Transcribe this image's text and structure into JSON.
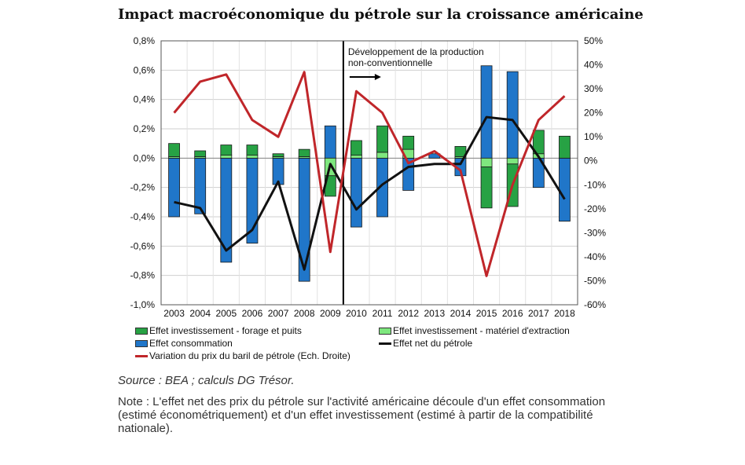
{
  "title": "Impact macroéconomique du pétrole sur la croissance américaine",
  "colors": {
    "forage": "#27a244",
    "materiel": "#7ee77e",
    "consommation": "#2076c9",
    "net": "#111111",
    "prix": "#c0262a"
  },
  "chart_data": {
    "type": "bar",
    "categories": [
      "2003",
      "2004",
      "2005",
      "2006",
      "2007",
      "2008",
      "2009",
      "2010",
      "2011",
      "2012",
      "2013",
      "2014",
      "2015",
      "2016",
      "2017",
      "2018"
    ],
    "series": [
      {
        "name": "Effet investissement - forage et puits",
        "type": "bar",
        "axis": "left",
        "values": [
          0.09,
          0.04,
          0.07,
          0.07,
          0.02,
          0.05,
          -0.14,
          0.1,
          0.18,
          0.09,
          0.0,
          0.07,
          -0.28,
          -0.29,
          0.16,
          0.15
        ]
      },
      {
        "name": "Effet investissement - matériel d'extraction",
        "type": "bar",
        "axis": "left",
        "values": [
          0.01,
          0.01,
          0.02,
          0.02,
          0.01,
          0.01,
          -0.12,
          0.02,
          0.04,
          0.06,
          0.0,
          0.01,
          -0.06,
          -0.04,
          0.03,
          0.0
        ]
      },
      {
        "name": "Effet consommation",
        "type": "bar",
        "axis": "left",
        "values": [
          -0.4,
          -0.38,
          -0.71,
          -0.58,
          -0.18,
          -0.84,
          0.22,
          -0.47,
          -0.4,
          -0.22,
          0.03,
          -0.12,
          0.63,
          0.59,
          -0.2,
          -0.43
        ]
      },
      {
        "name": "Effet net du pétrole",
        "type": "line",
        "axis": "left",
        "values": [
          -0.3,
          -0.34,
          -0.63,
          -0.49,
          -0.16,
          -0.76,
          -0.04,
          -0.35,
          -0.18,
          -0.06,
          -0.04,
          -0.04,
          0.28,
          0.26,
          0.01,
          -0.28
        ]
      },
      {
        "name": "Variation du prix du baril de pétrole (Ech. Droite)",
        "type": "line",
        "axis": "right",
        "values": [
          20,
          33,
          36,
          17,
          10,
          37,
          -38,
          29,
          20,
          -1,
          4,
          -4,
          -48,
          -10,
          17,
          27
        ]
      }
    ],
    "y_left": {
      "min": -1.0,
      "max": 0.8,
      "step": 0.2,
      "tick_labels": [
        "-1,0%",
        "-0,8%",
        "-0,6%",
        "-0,4%",
        "-0,2%",
        "0,0%",
        "0,2%",
        "0,4%",
        "0,6%",
        "0,8%"
      ]
    },
    "y_right": {
      "min": -60,
      "max": 50,
      "step": 10,
      "tick_labels": [
        "-60%",
        "-50%",
        "-40%",
        "-30%",
        "-20%",
        "-10%",
        "0%",
        "10%",
        "20%",
        "30%",
        "40%",
        "50%"
      ]
    },
    "grid": true,
    "annotation": {
      "text_line1": "Développement de la production",
      "text_line2": "non-conventionnelle",
      "after_category": "2009"
    },
    "legend": {
      "position": "bottom"
    }
  },
  "legend_labels": {
    "forage": "Effet investissement - forage et puits",
    "materiel": "Effet investissement - matériel d'extraction",
    "consommation": "Effet consommation",
    "net": "Effet net du pétrole",
    "prix": "Variation du prix du baril de pétrole (Ech. Droite)"
  },
  "source": "Source : BEA ; calculs DG Trésor.",
  "note": "Note : L'effet net des prix du pétrole sur l'activité américaine découle d'un effet consommation (estimé économétriquement) et d'un effet investissement (estimé à partir de la compatibilité nationale)."
}
